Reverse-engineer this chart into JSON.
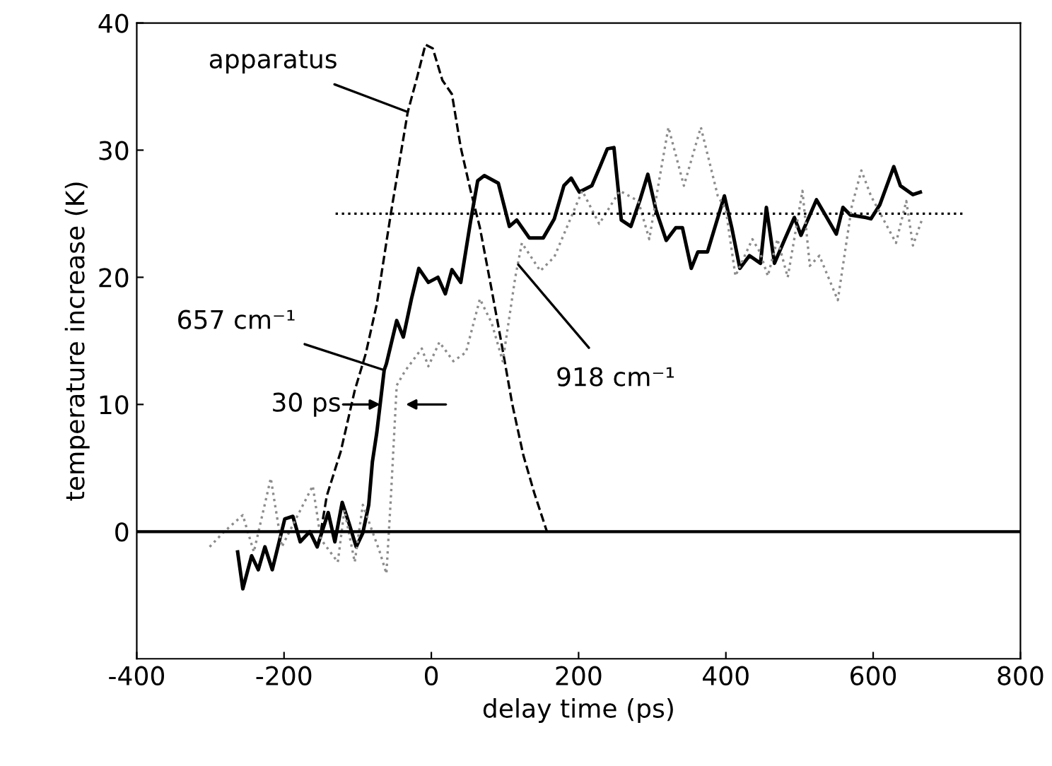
{
  "chart_data": {
    "type": "line",
    "xlabel": "delay time (ps)",
    "ylabel": "temperature increase (K)",
    "xlim": [
      -400,
      800
    ],
    "xticks": [
      -400,
      -200,
      0,
      200,
      400,
      600,
      800
    ],
    "ylim": [
      -10,
      40
    ],
    "yticks": [
      0,
      10,
      20,
      30,
      40
    ],
    "grid": false,
    "legend": false,
    "series": [
      {
        "color": "#000000",
        "line_style": "dashed",
        "x": [
          -150,
          -142,
          -123,
          -104,
          -89,
          -74,
          -55,
          -32,
          -19,
          -8,
          2,
          15,
          28,
          40,
          53,
          66,
          82,
          95,
          110,
          125,
          140,
          157
        ],
        "values": [
          0,
          2.8,
          6.3,
          11.1,
          14,
          17.9,
          25,
          33,
          35.8,
          38.3,
          38,
          35.5,
          34.4,
          30.2,
          26.9,
          23.9,
          19,
          14.9,
          10,
          6,
          3,
          0
        ]
      },
      {
        "color": "#000000",
        "line_style": "solid",
        "x": [
          -263,
          -256,
          -244,
          -235,
          -226,
          -216,
          -199,
          -188,
          -178,
          -165,
          -155,
          -140,
          -131,
          -121,
          -112,
          -102,
          -93,
          -85,
          -80,
          -74,
          -64,
          -61,
          -47,
          -38,
          -27,
          -17,
          -4,
          9,
          19,
          28,
          40,
          53,
          63,
          72,
          91,
          106,
          116,
          133,
          152,
          167,
          180,
          190,
          201,
          218,
          229,
          239,
          248,
          258,
          271,
          284,
          294,
          305,
          319,
          332,
          341,
          353,
          362,
          375,
          398,
          408,
          419,
          432,
          447,
          455,
          466,
          480,
          493,
          502,
          523,
          537,
          550,
          559,
          569,
          590,
          597,
          609,
          628,
          637,
          654,
          664
        ],
        "values": [
          -1.6,
          -4.5,
          -1.9,
          -3,
          -1.2,
          -3,
          1,
          1.2,
          -0.8,
          0,
          -1.2,
          1.5,
          -0.8,
          2.3,
          0.7,
          -1.2,
          -0.1,
          2.1,
          5.5,
          7.8,
          12.7,
          13.2,
          16.6,
          15.3,
          18.3,
          20.7,
          19.6,
          20,
          18.7,
          20.6,
          19.6,
          24.3,
          27.6,
          28,
          27.4,
          24,
          24.5,
          23.1,
          23.1,
          24.6,
          27.2,
          27.8,
          26.7,
          27.2,
          28.7,
          30.1,
          30.2,
          24.5,
          24,
          26.2,
          28.1,
          25.3,
          22.9,
          23.9,
          23.9,
          20.7,
          22,
          22,
          26.4,
          23.9,
          20.7,
          21.7,
          21.1,
          25.5,
          21.1,
          23,
          24.7,
          23.3,
          26.1,
          24.7,
          23.4,
          25.5,
          24.9,
          24.7,
          24.6,
          25.7,
          28.7,
          27.2,
          26.5,
          26.7
        ]
      },
      {
        "color": "#8c8c8c",
        "line_style": "dotted",
        "x": [
          -301,
          -283,
          -256,
          -241,
          -218,
          -203,
          -190,
          -161,
          -150,
          -127,
          -118,
          -104,
          -93,
          -70,
          -61,
          -55,
          -47,
          -36,
          -13,
          -4,
          11,
          30,
          47,
          66,
          82,
          97,
          114,
          123,
          148,
          167,
          205,
          228,
          256,
          281,
          296,
          309,
          322,
          343,
          366,
          389,
          400,
          413,
          436,
          446,
          457,
          470,
          484,
          504,
          514,
          527,
          552,
          571,
          584,
          597,
          631,
          645,
          654,
          666
        ],
        "values": [
          -1.2,
          -0.1,
          1.3,
          -1.6,
          4.2,
          -1.2,
          0.3,
          3.6,
          -0.6,
          -2.4,
          1.7,
          -2.4,
          2.1,
          -1.6,
          -3.3,
          2.6,
          11.5,
          12.6,
          14.4,
          13,
          14.9,
          13.4,
          14.1,
          18.3,
          16.4,
          13.4,
          20,
          22.7,
          20.5,
          21.6,
          26.8,
          24.2,
          26.8,
          26,
          23,
          27.5,
          31.8,
          27.2,
          31.8,
          26.4,
          25.3,
          20.1,
          23,
          22,
          20.1,
          23,
          20,
          26.8,
          20.9,
          21.7,
          18.2,
          25.6,
          28.4,
          26.4,
          22.7,
          26,
          22.5,
          24.5
        ]
      },
      {
        "color": "#000000",
        "line_style": "dotted",
        "x": [
          -130,
          725
        ],
        "values": [
          25,
          25
        ]
      }
    ],
    "ref_lines": [
      {
        "axis": "y",
        "value": 0,
        "color": "#000000",
        "line_style": "solid"
      }
    ],
    "annotations": [
      {
        "text": "apparatus",
        "x": -32,
        "y": 33
      },
      {
        "text": "657 cm⁻¹",
        "x": -64,
        "y": 12.7
      },
      {
        "text": "918 cm⁻¹",
        "x": 118,
        "y": 21
      },
      "30 ps"
    ]
  }
}
